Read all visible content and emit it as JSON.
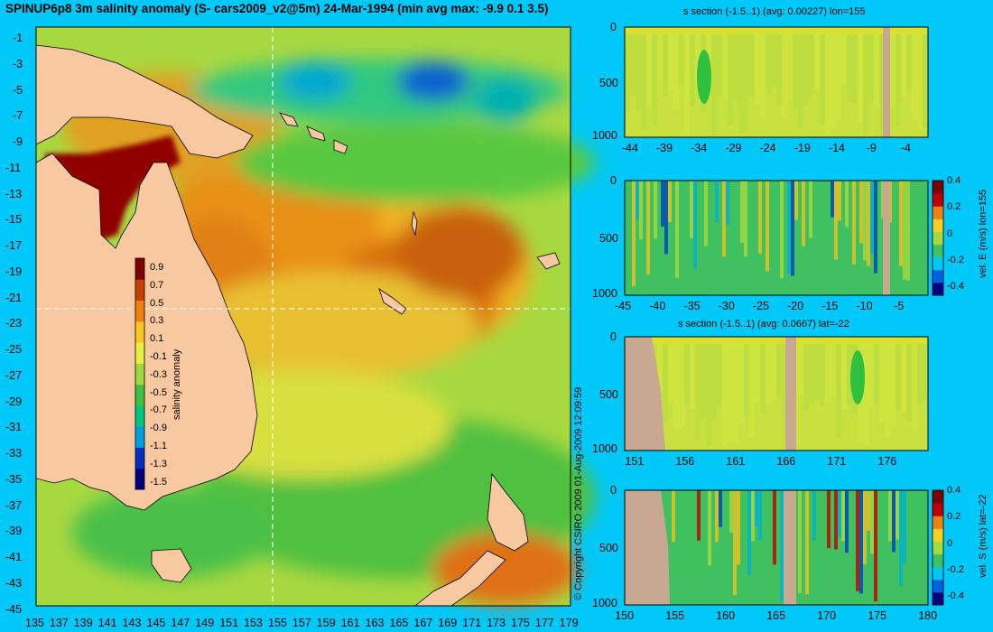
{
  "title": "SPINUP6p8 3m salinity anomaly (S- cars2009_v2@5m) 24-Mar-1994 (min avg max: -9.9 0.1 3.5)",
  "copyright": "© Copyright CSIRO 2009   01-Aug-2009 12:09:59",
  "colors": {
    "background": "#00c8f8",
    "land": "#f8c8a0",
    "section_land": "#c8a890",
    "colormap": [
      "#00007f",
      "#0030c0",
      "#00a0e0",
      "#00c880",
      "#40c040",
      "#a0d840",
      "#e8f040",
      "#f8c820",
      "#f08010",
      "#c84000",
      "#800000"
    ]
  },
  "chart_data": [
    {
      "id": "map",
      "type": "heatmap",
      "title": "SPINUP6p8 3m salinity anomaly (S- cars2009_v2@5m) 24-Mar-1994 (min avg max: -9.9 0.1 3.5)",
      "x_ticks": [
        "135",
        "137",
        "139",
        "141",
        "143",
        "145",
        "147",
        "149",
        "151",
        "153",
        "155",
        "157",
        "159",
        "161",
        "163",
        "165",
        "167",
        "169",
        "171",
        "173",
        "175",
        "177",
        "179"
      ],
      "y_ticks": [
        "-1",
        "-3",
        "-5",
        "-7",
        "-9",
        "-11",
        "-13",
        "-15",
        "-17",
        "-19",
        "-21",
        "-23",
        "-25",
        "-27",
        "-29",
        "-31",
        "-33",
        "-35",
        "-37",
        "-39",
        "-41",
        "-43",
        "-45"
      ],
      "xlim": [
        135,
        180
      ],
      "ylim": [
        -45,
        0
      ],
      "colorbar": {
        "label": "salinity anomaly",
        "ticks": [
          "0.9",
          "0.7",
          "0.5",
          "0.3",
          "0.1",
          "-0.1",
          "-0.3",
          "-0.5",
          "-0.7",
          "-0.9",
          "-1.1",
          "-1.3",
          "-1.5"
        ],
        "range": [
          -1.5,
          1.0
        ]
      },
      "section_lines": {
        "lon": 155,
        "lat": -22
      }
    },
    {
      "id": "s-lon",
      "type": "heatmap",
      "title": "s section (-1.5..1) (avg: 0.00227) lon=155",
      "x_ticks": [
        "-44",
        "-39",
        "-34",
        "-29",
        "-24",
        "-19",
        "-14",
        "-9",
        "-4"
      ],
      "xlim": [
        -45,
        -1
      ],
      "y_ticks": [
        "0",
        "500",
        "1000"
      ],
      "ylim": [
        1000,
        0
      ],
      "ylabel": ""
    },
    {
      "id": "vel-e",
      "type": "heatmap",
      "title": "",
      "x_ticks": [
        "-45",
        "-40",
        "-35",
        "-30",
        "-25",
        "-20",
        "-15",
        "-10",
        "-5"
      ],
      "xlim": [
        -45,
        -1
      ],
      "y_ticks": [
        "0",
        "500",
        "1000"
      ],
      "ylim": [
        1000,
        0
      ],
      "colorbar": {
        "label": "vel. E (m/s) lon=155",
        "ticks": [
          "0.4",
          "0.2",
          "0",
          "-0.2",
          "-0.4"
        ],
        "range": [
          -0.4,
          0.4
        ]
      }
    },
    {
      "id": "s-lat",
      "type": "heatmap",
      "title": "s section (-1.5..1) (avg: 0.0667) lat=-22",
      "x_ticks": [
        "151",
        "156",
        "161",
        "166",
        "171",
        "176"
      ],
      "xlim": [
        150,
        180
      ],
      "y_ticks": [
        "0",
        "500",
        "1000"
      ],
      "ylim": [
        1000,
        0
      ]
    },
    {
      "id": "vel-s",
      "type": "heatmap",
      "title": "",
      "x_ticks": [
        "150",
        "155",
        "160",
        "165",
        "170",
        "175",
        "180"
      ],
      "xlim": [
        150,
        180
      ],
      "y_ticks": [
        "0",
        "500",
        "1000"
      ],
      "ylim": [
        1000,
        0
      ],
      "colorbar": {
        "label": "vel. S (m/s) lat=-22",
        "ticks": [
          "0.4",
          "0.2",
          "0",
          "-0.2",
          "-0.4"
        ],
        "range": [
          -0.4,
          0.4
        ]
      }
    }
  ]
}
